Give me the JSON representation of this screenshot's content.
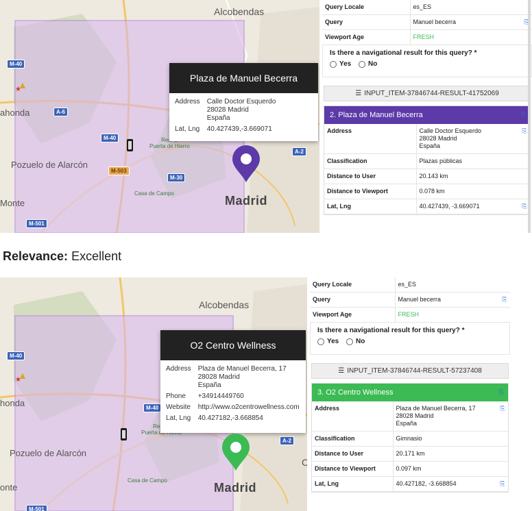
{
  "colors": {
    "purple": "#5c3aa8",
    "green": "#3cba54",
    "fresh": "#3cba54",
    "viewport_fill": "#d8b6f0",
    "map_bg": "#efeae0"
  },
  "map_labels": {
    "alcobendas": "Alcobendas",
    "pozuelo": "Pozuelo de Alarcón",
    "madrid": "Madrid",
    "ahonda": "ahonda",
    "honda": "honda",
    "monte": "Monte",
    "onte": "onte",
    "real_cl": "Real C",
    "puerta": "Puerta de Hierro",
    "casa_campo": "Casa de Campo",
    "c_letter": "C",
    "shields": {
      "m40": "M-40",
      "a6": "A-6",
      "m30": "M-30",
      "a2": "A-2",
      "m503": "M-503",
      "m501": "M-501"
    }
  },
  "result1": {
    "popup_title": "Plaza de Manuel Becerra",
    "popup_rows": [
      {
        "k": "Address",
        "v": "Calle Doctor Esquerdo\n28028 Madrid\nEspaña"
      },
      {
        "k": "Lat, Lng",
        "v": "40.427439,-3.669071"
      }
    ],
    "query_rows": [
      {
        "k": "Query Locale",
        "v": "es_ES",
        "icon": false
      },
      {
        "k": "Query",
        "v": "Manuel becerra",
        "icon": true
      },
      {
        "k": "Viewport Age",
        "v": "FRESH",
        "icon": false
      }
    ],
    "nav_question": "Is there a navigational result for this query? *",
    "yes": "Yes",
    "no": "No",
    "input_item": "INPUT_ITEM-37846744-RESULT-41752069",
    "card_title": "2. Plaza de Manuel Becerra",
    "card_rows": [
      {
        "k": "Address",
        "v": "Calle Doctor Esquerdo\n28028 Madrid\nEspaña",
        "icon": true
      },
      {
        "k": "Classification",
        "v": "Plazas públicas",
        "icon": false
      },
      {
        "k": "Distance to User",
        "v": "20.143 km",
        "icon": false
      },
      {
        "k": "Distance to Viewport",
        "v": "0.078 km",
        "icon": false
      },
      {
        "k": "Lat, Lng",
        "v": "40.427439, -3.669071",
        "icon": true
      }
    ]
  },
  "relevance": {
    "label": "Relevance:",
    "value": "Excellent"
  },
  "result2": {
    "popup_title": "O2 Centro Wellness",
    "popup_rows": [
      {
        "k": "Address",
        "v": "Plaza de Manuel Becerra, 17\n28028 Madrid\nEspaña"
      },
      {
        "k": "Phone",
        "v": "+34914449760"
      },
      {
        "k": "Website",
        "v": "http://www.o2centrowellness.com"
      },
      {
        "k": "Lat, Lng",
        "v": "40.427182,-3.668854"
      }
    ],
    "query_rows": [
      {
        "k": "Query Locale",
        "v": "es_ES",
        "icon": false
      },
      {
        "k": "Query",
        "v": "Manuel becerra",
        "icon": true
      },
      {
        "k": "Viewport Age",
        "v": "FRESH",
        "icon": false
      }
    ],
    "nav_question": "Is there a navigational result for this query? *",
    "yes": "Yes",
    "no": "No",
    "input_item": "INPUT_ITEM-37846744-RESULT-57237408",
    "card_title": "3. O2 Centro Wellness",
    "card_rows": [
      {
        "k": "Address",
        "v": "Plaza de Manuel Becerra, 17\n28028 Madrid\nEspaña",
        "icon": true
      },
      {
        "k": "Classification",
        "v": "Gimnasio",
        "icon": false
      },
      {
        "k": "Distance to User",
        "v": "20.171 km",
        "icon": false
      },
      {
        "k": "Distance to Viewport",
        "v": "0.097 km",
        "icon": false
      },
      {
        "k": "Lat, Lng",
        "v": "40.427182, -3.668854",
        "icon": true
      }
    ]
  }
}
